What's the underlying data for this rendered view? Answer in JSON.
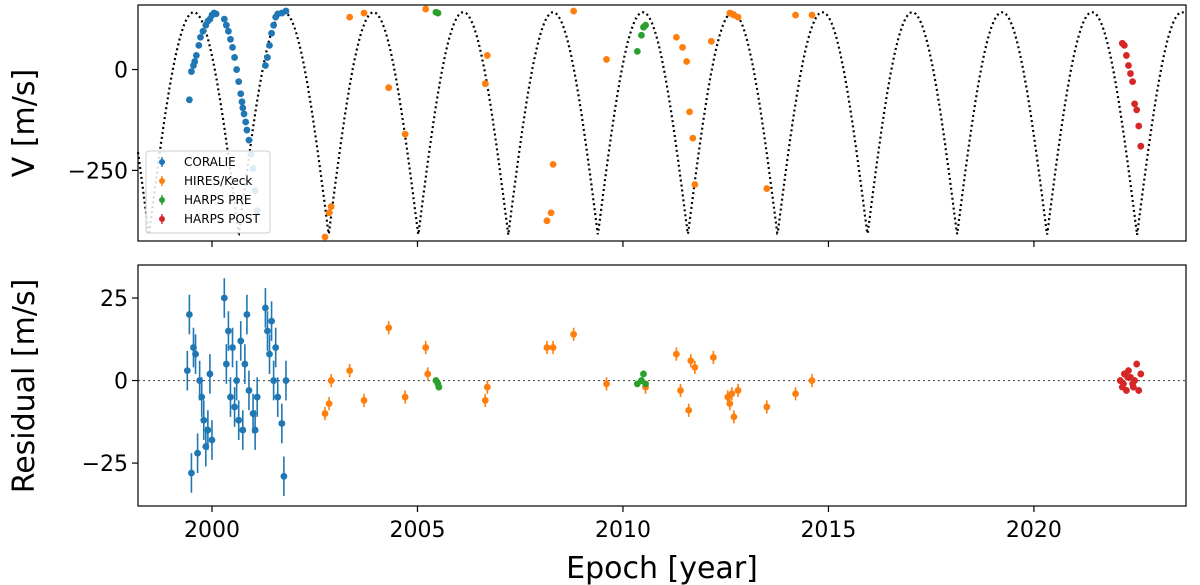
{
  "colors": {
    "CORALIE": "#1f77b4",
    "HIRES/Keck": "#ff7f0e",
    "HARPS PRE": "#2ca02c",
    "HARPS POST": "#d62728",
    "model": "#000000",
    "zero_line": "#555555"
  },
  "chart_data": [
    {
      "type": "scatter",
      "name": "rv-panel",
      "title": "",
      "xlabel": "",
      "ylabel": "V [m/s]",
      "xlim": [
        1998.2,
        2023.7
      ],
      "ylim": [
        -425,
        160
      ],
      "x_ticks": [
        2000,
        2005,
        2010,
        2015,
        2020
      ],
      "y_ticks": [
        0,
        -250
      ],
      "y_tick_labels": [
        "0",
        "−250"
      ],
      "model": {
        "style": "dotted",
        "period_years": 2.185,
        "k": 142,
        "minimum_value": -410,
        "minimum_epochs": [
          2000.65,
          2002.84,
          2005.02,
          2007.21,
          2009.39,
          2011.58,
          2013.76,
          2015.95,
          2018.13,
          2020.32,
          2022.51
        ]
      },
      "legend": {
        "position": "lower-left",
        "entries": [
          "CORALIE",
          "HIRES/Keck",
          "HARPS PRE",
          "HARPS POST"
        ]
      },
      "series": [
        {
          "name": "CORALIE",
          "x": [
            1999.45,
            1999.5,
            1999.55,
            1999.58,
            1999.62,
            1999.68,
            1999.72,
            1999.78,
            1999.85,
            1999.9,
            1999.95,
            2000.0,
            2000.05,
            2000.1,
            2000.3,
            2000.35,
            2000.4,
            2000.45,
            2000.5,
            2000.55,
            2000.6,
            2000.65,
            2000.7,
            2000.73,
            2000.75,
            2000.78,
            2000.82,
            2000.85,
            2000.9,
            2000.95,
            2001.0,
            2001.05,
            2001.1,
            2001.3,
            2001.35,
            2001.4,
            2001.45,
            2001.5,
            2001.55,
            2001.6,
            2001.7,
            2001.8
          ],
          "y": [
            -75,
            -5,
            10,
            20,
            35,
            60,
            80,
            95,
            110,
            120,
            125,
            135,
            140,
            138,
            125,
            110,
            95,
            75,
            55,
            30,
            0,
            -30,
            -60,
            -80,
            -95,
            -110,
            -130,
            -150,
            -175,
            -210,
            -245,
            -300,
            -350,
            10,
            30,
            60,
            90,
            110,
            130,
            138,
            140,
            145
          ],
          "err": [
            6,
            6,
            6,
            6,
            6,
            6,
            6,
            6,
            6,
            6,
            6,
            6,
            6,
            6,
            6,
            6,
            6,
            6,
            6,
            6,
            6,
            6,
            6,
            6,
            6,
            6,
            6,
            6,
            6,
            6,
            6,
            6,
            6,
            6,
            6,
            6,
            6,
            6,
            6,
            6,
            6,
            6
          ]
        },
        {
          "name": "HIRES/Keck",
          "x": [
            2002.75,
            2002.85,
            2002.9,
            2003.35,
            2003.7,
            2004.3,
            2004.7,
            2005.2,
            2006.65,
            2006.7,
            2008.15,
            2008.25,
            2008.3,
            2008.8,
            2009.6,
            2011.3,
            2011.45,
            2011.55,
            2011.62,
            2011.7,
            2011.75,
            2012.15,
            2012.6,
            2012.65,
            2012.7,
            2012.8,
            2013.5,
            2014.2,
            2014.6
          ],
          "y": [
            -415,
            -355,
            -340,
            130,
            140,
            -45,
            -160,
            150,
            -35,
            35,
            -375,
            -355,
            -235,
            145,
            25,
            80,
            55,
            20,
            -105,
            -170,
            -285,
            70,
            140,
            138,
            135,
            130,
            -295,
            135,
            135
          ],
          "err": [
            5,
            5,
            5,
            5,
            5,
            5,
            5,
            5,
            5,
            5,
            5,
            5,
            5,
            5,
            5,
            5,
            5,
            5,
            5,
            5,
            5,
            5,
            5,
            5,
            5,
            5,
            5,
            5,
            5
          ]
        },
        {
          "name": "HARPS PRE",
          "x": [
            2005.45,
            2005.5,
            2010.35,
            2010.45,
            2010.5,
            2010.55
          ],
          "y": [
            142,
            140,
            45,
            85,
            105,
            110
          ],
          "err": [
            2,
            2,
            2,
            2,
            2,
            2
          ]
        },
        {
          "name": "HARPS POST",
          "x": [
            2022.15,
            2022.2,
            2022.25,
            2022.3,
            2022.35,
            2022.4,
            2022.45,
            2022.5,
            2022.55,
            2022.6
          ],
          "y": [
            65,
            60,
            35,
            10,
            -10,
            -30,
            -85,
            -100,
            -140,
            -190
          ],
          "err": [
            2,
            2,
            2,
            2,
            2,
            2,
            2,
            2,
            2,
            2
          ]
        }
      ]
    },
    {
      "type": "scatter",
      "name": "residual-panel",
      "title": "",
      "xlabel": "Epoch [year]",
      "ylabel": "Residual [m/s]",
      "xlim": [
        1998.2,
        2023.7
      ],
      "ylim": [
        -38,
        35
      ],
      "x_ticks": [
        2000,
        2005,
        2010,
        2015,
        2020
      ],
      "x_tick_labels": [
        "2000",
        "2005",
        "2010",
        "2015",
        "2020"
      ],
      "y_ticks": [
        25,
        0,
        -25
      ],
      "y_tick_labels": [
        "25",
        "0",
        "−25"
      ],
      "zero_line": 0,
      "series": [
        {
          "name": "CORALIE",
          "x": [
            1999.4,
            1999.45,
            1999.5,
            1999.55,
            1999.6,
            1999.65,
            1999.7,
            1999.75,
            1999.8,
            1999.85,
            1999.9,
            1999.95,
            2000.0,
            2000.3,
            2000.35,
            2000.4,
            2000.45,
            2000.5,
            2000.55,
            2000.6,
            2000.65,
            2000.7,
            2000.75,
            2000.8,
            2000.85,
            2000.9,
            2001.0,
            2001.05,
            2001.1,
            2001.3,
            2001.35,
            2001.4,
            2001.45,
            2001.5,
            2001.55,
            2001.6,
            2001.7,
            2001.75,
            2001.8
          ],
          "y": [
            3,
            20,
            -28,
            10,
            8,
            -22,
            0,
            -5,
            -12,
            -20,
            -15,
            2,
            -18,
            25,
            5,
            15,
            -5,
            10,
            -8,
            0,
            -12,
            12,
            -15,
            5,
            20,
            -3,
            -10,
            -15,
            -5,
            22,
            15,
            8,
            18,
            0,
            10,
            -5,
            -13,
            -29,
            0
          ],
          "err": [
            6,
            6,
            6,
            6,
            6,
            6,
            6,
            6,
            6,
            6,
            6,
            6,
            6,
            6,
            6,
            6,
            6,
            6,
            6,
            6,
            6,
            6,
            6,
            6,
            6,
            6,
            6,
            6,
            6,
            6,
            6,
            6,
            6,
            6,
            6,
            6,
            6,
            6,
            6
          ]
        },
        {
          "name": "HIRES/Keck",
          "x": [
            2002.75,
            2002.85,
            2002.9,
            2003.35,
            2003.7,
            2004.3,
            2004.7,
            2005.2,
            2005.25,
            2006.65,
            2006.7,
            2008.15,
            2008.3,
            2008.8,
            2009.6,
            2010.55,
            2011.3,
            2011.4,
            2011.6,
            2011.65,
            2011.75,
            2012.2,
            2012.55,
            2012.6,
            2012.65,
            2012.7,
            2012.8,
            2013.5,
            2014.2,
            2014.6
          ],
          "y": [
            -10,
            -7,
            0,
            3,
            -6,
            16,
            -5,
            10,
            2,
            -6,
            -2,
            10,
            10,
            14,
            -1,
            -2,
            8,
            -3,
            -9,
            6,
            4,
            7,
            -5,
            -7,
            -4,
            -11,
            -3,
            -8,
            -4,
            0
          ],
          "err": [
            2,
            2,
            2,
            2,
            2,
            2,
            2,
            2,
            2,
            2,
            2,
            2,
            2,
            2,
            2,
            2,
            2,
            2,
            2,
            2,
            2,
            2,
            2,
            2,
            2,
            2,
            2,
            2,
            2,
            2
          ]
        },
        {
          "name": "HARPS PRE",
          "x": [
            2005.45,
            2005.5,
            2005.52,
            2010.35,
            2010.45,
            2010.5,
            2010.55
          ],
          "y": [
            0,
            -1,
            -2,
            -1,
            0,
            2,
            -1
          ],
          "err": [
            1,
            1,
            1,
            1,
            1,
            1,
            1
          ]
        },
        {
          "name": "HARPS POST",
          "x": [
            2022.1,
            2022.15,
            2022.2,
            2022.25,
            2022.3,
            2022.35,
            2022.4,
            2022.45,
            2022.5,
            2022.55,
            2022.6,
            2022.18,
            2022.28,
            2022.42
          ],
          "y": [
            0,
            -2,
            2,
            -3,
            3,
            1,
            -1,
            0,
            5,
            -3,
            2,
            -1,
            1,
            -2
          ],
          "err": [
            1,
            1,
            1,
            1,
            1,
            1,
            1,
            1,
            1,
            1,
            1,
            1,
            1,
            1
          ]
        }
      ]
    }
  ]
}
